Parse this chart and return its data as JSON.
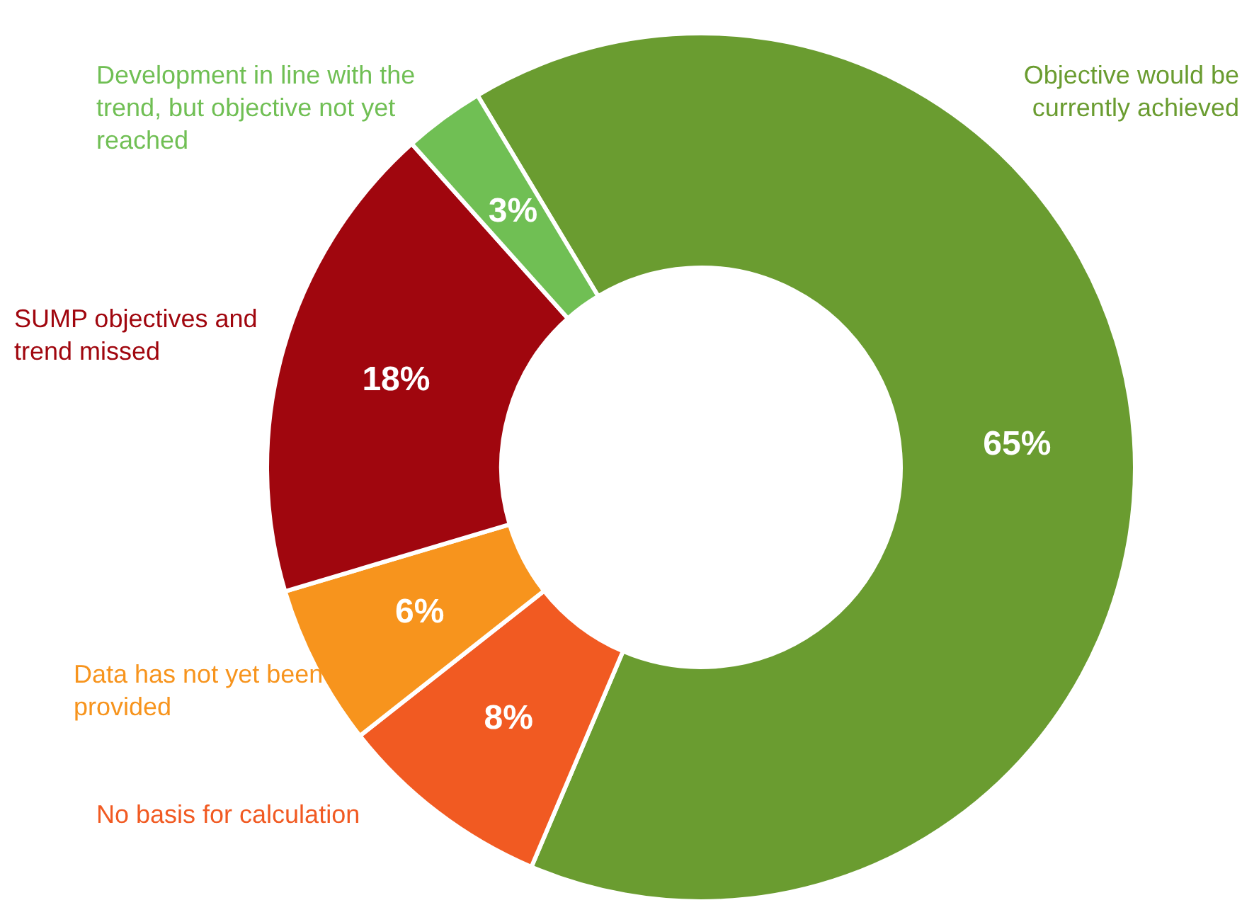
{
  "chart_data": {
    "type": "donut",
    "categories": [
      "Objective would be currently achieved",
      "No basis for calculation",
      "Data has not yet been provided",
      "SUMP objectives and trend missed",
      "Development in line with the trend, but objective not yet reached"
    ],
    "values": [
      65,
      8,
      6,
      18,
      3
    ],
    "value_labels": [
      "65%",
      "8%",
      "6%",
      "18%",
      "3%"
    ],
    "colors": [
      "#6a9c30",
      "#f15a22",
      "#f7941d",
      "#a0060e",
      "#70bf54"
    ],
    "legend": false
  }
}
